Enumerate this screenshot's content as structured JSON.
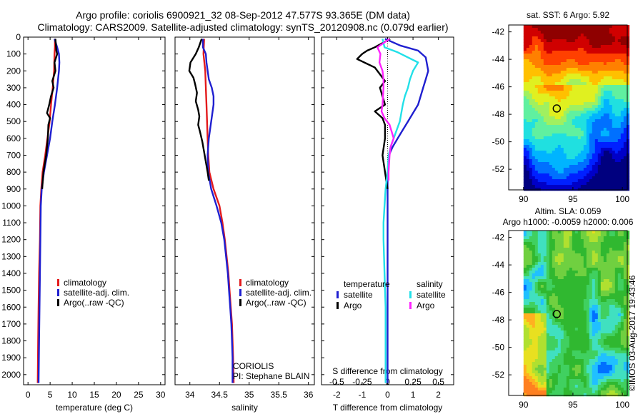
{
  "header": {
    "title_line1": "Argo profile: coriolis 6900921_32 08-Sep-2012 47.577S 93.365E (DM data)",
    "title_line2": "Climatology: CARS2009. Satellite-adjusted climatology: synTS_20120908.nc (0.079d earlier)"
  },
  "chart_data": [
    {
      "type": "line",
      "panel": "temperature",
      "xlabel": "temperature (deg C)",
      "xlim": [
        -1,
        31
      ],
      "xticks": [
        0,
        5,
        10,
        15,
        20,
        25,
        30
      ],
      "ylim": [
        2060,
        0
      ],
      "yticks": [
        0,
        100,
        200,
        300,
        400,
        500,
        600,
        700,
        800,
        900,
        1000,
        1100,
        1200,
        1300,
        1400,
        1500,
        1600,
        1700,
        1800,
        1900,
        2000
      ],
      "series": [
        {
          "name": "climatology",
          "color": "#e31a1c",
          "points": [
            [
              6.1,
              10
            ],
            [
              6.1,
              60
            ],
            [
              6.0,
              100
            ],
            [
              5.9,
              200
            ],
            [
              5.6,
              300
            ],
            [
              5.2,
              400
            ],
            [
              4.9,
              500
            ],
            [
              4.4,
              600
            ],
            [
              3.9,
              700
            ],
            [
              3.3,
              800
            ],
            [
              3.0,
              900
            ],
            [
              2.8,
              1000
            ],
            [
              2.7,
              1200
            ],
            [
              2.5,
              1400
            ],
            [
              2.4,
              1600
            ],
            [
              2.3,
              1800
            ],
            [
              2.2,
              2050
            ]
          ]
        },
        {
          "name": "satellite-adj. clim.",
          "color": "#1f1fd0",
          "points": [
            [
              6.0,
              10
            ],
            [
              6.6,
              60
            ],
            [
              6.8,
              80
            ],
            [
              7.0,
              100
            ],
            [
              7.1,
              150
            ],
            [
              7.0,
              200
            ],
            [
              6.6,
              300
            ],
            [
              6.1,
              400
            ],
            [
              5.5,
              500
            ],
            [
              5.0,
              600
            ],
            [
              4.3,
              700
            ],
            [
              3.6,
              800
            ],
            [
              3.1,
              900
            ],
            [
              2.9,
              1000
            ],
            [
              2.8,
              1200
            ],
            [
              2.7,
              1400
            ],
            [
              2.6,
              1600
            ],
            [
              2.5,
              1800
            ],
            [
              2.4,
              2050
            ]
          ]
        },
        {
          "name": "Argo(..raw -QC)",
          "color": "#000000",
          "points": [
            [
              6.2,
              10
            ],
            [
              6.4,
              80
            ],
            [
              6.6,
              100
            ],
            [
              6.0,
              150
            ],
            [
              6.2,
              200
            ],
            [
              5.5,
              260
            ],
            [
              5.8,
              300
            ],
            [
              5.2,
              350
            ],
            [
              4.8,
              400
            ],
            [
              4.3,
              450
            ],
            [
              5.0,
              480
            ],
            [
              4.6,
              520
            ],
            [
              4.5,
              600
            ],
            [
              4.1,
              700
            ],
            [
              3.5,
              800
            ],
            [
              3.2,
              900
            ]
          ]
        }
      ],
      "legend": [
        "climatology",
        "satellite-adj. clim.",
        "Argo(..raw -QC)"
      ]
    },
    {
      "type": "line",
      "panel": "salinity",
      "xlabel": "salinity",
      "xlim": [
        33.75,
        36.1
      ],
      "xticks": [
        34,
        34.5,
        35,
        35.5,
        36
      ],
      "xtick_labels": [
        "34",
        "34.5",
        "35",
        "35.5",
        "36"
      ],
      "ylim": [
        2060,
        0
      ],
      "series": [
        {
          "name": "climatology",
          "color": "#e31a1c",
          "points": [
            [
              34.24,
              10
            ],
            [
              34.23,
              100
            ],
            [
              34.26,
              200
            ],
            [
              34.27,
              300
            ],
            [
              34.28,
              400
            ],
            [
              34.29,
              500
            ],
            [
              34.3,
              600
            ],
            [
              34.31,
              700
            ],
            [
              34.33,
              800
            ],
            [
              34.4,
              900
            ],
            [
              34.5,
              1000
            ],
            [
              34.55,
              1100
            ],
            [
              34.59,
              1200
            ],
            [
              34.62,
              1300
            ],
            [
              34.65,
              1400
            ],
            [
              34.67,
              1500
            ],
            [
              34.69,
              1600
            ],
            [
              34.71,
              1700
            ],
            [
              34.72,
              1800
            ],
            [
              34.73,
              1900
            ],
            [
              34.74,
              2050
            ]
          ]
        },
        {
          "name": "satellite-adj. clim.",
          "color": "#1f1fd0",
          "points": [
            [
              34.22,
              10
            ],
            [
              34.22,
              60
            ],
            [
              34.27,
              100
            ],
            [
              34.28,
              150
            ],
            [
              34.32,
              250
            ],
            [
              34.37,
              300
            ],
            [
              34.4,
              350
            ],
            [
              34.4,
              400
            ],
            [
              34.36,
              500
            ],
            [
              34.32,
              600
            ],
            [
              34.3,
              700
            ],
            [
              34.31,
              800
            ],
            [
              34.36,
              900
            ],
            [
              34.45,
              1000
            ],
            [
              34.53,
              1100
            ],
            [
              34.58,
              1200
            ],
            [
              34.61,
              1300
            ],
            [
              34.64,
              1400
            ],
            [
              34.66,
              1500
            ],
            [
              34.68,
              1600
            ],
            [
              34.7,
              1700
            ],
            [
              34.71,
              1800
            ],
            [
              34.72,
              1900
            ],
            [
              34.72,
              2050
            ]
          ]
        },
        {
          "name": "Argo(..raw -QC)",
          "color": "#000000",
          "points": [
            [
              34.2,
              10
            ],
            [
              34.15,
              60
            ],
            [
              34.1,
              100
            ],
            [
              34.01,
              150
            ],
            [
              33.99,
              200
            ],
            [
              34.06,
              240
            ],
            [
              34.09,
              280
            ],
            [
              34.12,
              330
            ],
            [
              34.1,
              380
            ],
            [
              34.14,
              430
            ],
            [
              34.16,
              470
            ],
            [
              34.14,
              520
            ],
            [
              34.17,
              560
            ],
            [
              34.21,
              620
            ],
            [
              34.26,
              720
            ],
            [
              34.3,
              800
            ],
            [
              34.32,
              850
            ]
          ]
        }
      ],
      "legend": [
        "climatology",
        "satellite-adj. clim.",
        "Argo(..raw -QC)"
      ],
      "annotations": [
        "CORIOLIS",
        "PI: Stephane BLAIN"
      ]
    },
    {
      "type": "line",
      "panel": "difference",
      "xlabel": "T difference from climatology",
      "xlabel_top": "S difference from climatology",
      "xlim": [
        -2.6,
        2.6
      ],
      "xticks": [
        -2,
        -1,
        0,
        1,
        2
      ],
      "xticks_top": [
        -0.5,
        -0.25,
        0,
        0.25,
        0.5
      ],
      "xtick_top_labels": [
        "-0.5",
        "-0.25",
        "0",
        "0.25",
        "0.5"
      ],
      "ylim": [
        2060,
        0
      ],
      "series": [
        {
          "name": "temperature satellite",
          "color": "#1f1fd0",
          "points": [
            [
              -0.1,
              10
            ],
            [
              0.5,
              50
            ],
            [
              1.2,
              80
            ],
            [
              1.5,
              120
            ],
            [
              1.6,
              200
            ],
            [
              1.5,
              250
            ],
            [
              1.4,
              300
            ],
            [
              1.2,
              400
            ],
            [
              1.0,
              450
            ],
            [
              0.8,
              500
            ],
            [
              0.6,
              550
            ],
            [
              0.4,
              600
            ],
            [
              0.2,
              650
            ],
            [
              0.05,
              700
            ],
            [
              0,
              800
            ],
            [
              0,
              1000
            ],
            [
              0,
              2050
            ]
          ]
        },
        {
          "name": "temperature Argo",
          "color": "#000000",
          "points": [
            [
              0.1,
              10
            ],
            [
              -0.5,
              60
            ],
            [
              -0.8,
              80
            ],
            [
              -1.0,
              100
            ],
            [
              -1.2,
              130
            ],
            [
              -0.5,
              180
            ],
            [
              -0.3,
              220
            ],
            [
              -0.1,
              260
            ],
            [
              -0.3,
              300
            ],
            [
              -0.1,
              400
            ],
            [
              -0.5,
              440
            ],
            [
              -0.2,
              480
            ],
            [
              -0.1,
              520
            ],
            [
              -0.1,
              600
            ],
            [
              -0.2,
              700
            ],
            [
              -0.1,
              800
            ],
            [
              0,
              900
            ]
          ]
        },
        {
          "name": "salinity satellite",
          "color": "#22e0e8",
          "points": [
            [
              -0.05,
              10
            ],
            [
              -0.03,
              60
            ],
            [
              0.1,
              90
            ],
            [
              0.3,
              150
            ],
            [
              0.25,
              200
            ],
            [
              0.22,
              250
            ],
            [
              0.2,
              300
            ],
            [
              0.17,
              350
            ],
            [
              0.15,
              400
            ],
            [
              0.12,
              500
            ],
            [
              0.06,
              600
            ],
            [
              0.03,
              650
            ],
            [
              0.01,
              700
            ],
            [
              0,
              800
            ],
            [
              -0.02,
              900
            ],
            [
              -0.03,
              1000
            ],
            [
              -0.04,
              1100
            ],
            [
              -0.04,
              1200
            ],
            [
              -0.03,
              1400
            ],
            [
              -0.02,
              1600
            ],
            [
              -0.02,
              1800
            ],
            [
              -0.02,
              2050
            ]
          ]
        },
        {
          "name": "salinity Argo",
          "color": "#ff22ff",
          "points": [
            [
              0.02,
              10
            ],
            [
              -0.1,
              60
            ],
            [
              -0.07,
              100
            ],
            [
              -0.08,
              150
            ],
            [
              -0.05,
              200
            ],
            [
              -0.04,
              250
            ],
            [
              -0.04,
              300
            ],
            [
              -0.05,
              400
            ],
            [
              -0.06,
              440
            ],
            [
              -0.03,
              480
            ],
            [
              0.02,
              520
            ],
            [
              0.04,
              560
            ],
            [
              0.06,
              600
            ],
            [
              0.03,
              650
            ],
            [
              0.02,
              700
            ],
            [
              0.01,
              800
            ],
            [
              0.01,
              850
            ]
          ]
        }
      ],
      "legend": {
        "temperature_header": "temperature",
        "salinity_header": "salinity",
        "items": [
          "satellite",
          "Argo",
          "satellite",
          "Argo"
        ]
      }
    },
    {
      "type": "heatmap",
      "panel": "sst_map",
      "title": "sat. SST: 6 Argo: 5.92",
      "xticks": [
        90,
        95,
        100
      ],
      "yticks": [
        -42,
        -44,
        -46,
        -48,
        -50,
        -52
      ],
      "xlim": [
        88.5,
        100.5
      ],
      "ylim": [
        -53.5,
        -41.5
      ]
    },
    {
      "type": "heatmap",
      "panel": "sla_map",
      "title_line1": "Altim. SLA: 0.059",
      "title_line2": "Argo h1000: -0.0059 h2000: 0.006",
      "xticks": [
        90,
        95,
        100
      ],
      "yticks": [
        -42,
        -44,
        -46,
        -48,
        -50,
        -52
      ],
      "xlim": [
        88.5,
        100.5
      ],
      "ylim": [
        -53.5,
        -41.5
      ],
      "argo_position": [
        93.365,
        -47.577
      ]
    }
  ],
  "watermark": "©IMOS 03-Aug-2017 19:43:46"
}
